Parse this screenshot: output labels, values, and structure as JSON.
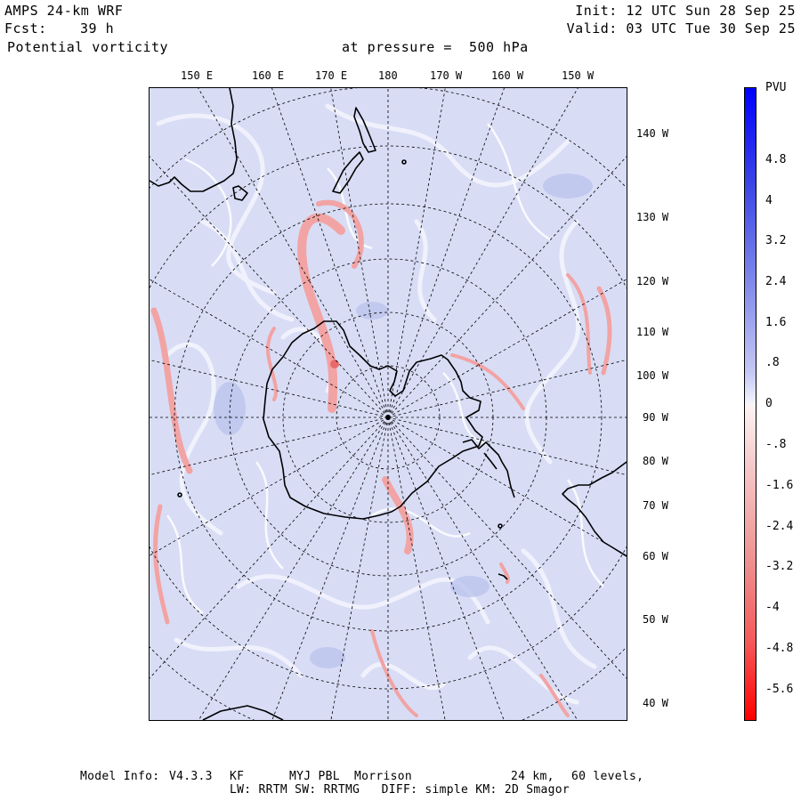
{
  "header": {
    "model": "AMPS 24-km WRF",
    "fcst_label": "Fcst:",
    "fcst_value": "39 h",
    "field": "Potential vorticity",
    "pressure_text": "at pressure =  500 hPa",
    "init": "Init: 12 UTC Sun 28 Sep 25",
    "valid": "Valid: 03 UTC Tue 30 Sep 25"
  },
  "top_longitude_labels": [
    "150 E",
    "160 E",
    "170 E",
    "180",
    "170 W",
    "160 W",
    "150 W"
  ],
  "right_longitude_labels": [
    "140 W",
    "130 W",
    "120 W",
    "110 W",
    "100 W",
    "90 W",
    "80 W",
    "70 W",
    "60 W",
    "50 W",
    "40 W"
  ],
  "colorbar": {
    "unit": "PVU",
    "labels": [
      "4.8",
      "4",
      "3.2",
      "2.4",
      "1.6",
      ".8",
      "0",
      "-.8",
      "-1.6",
      "-2.4",
      "-3.2",
      "-4",
      "-4.8",
      "-5.6"
    ],
    "colors": {
      "max_positive": "#0000ff",
      "near_zero": "#ffffff",
      "max_negative": "#ff0000",
      "map_background": "#d7dcf5",
      "negative_streak": "#f5a0a0"
    }
  },
  "footer": {
    "line1_label": "Model Info:",
    "line1_version": "V4.3.3",
    "line1_cu": "KF",
    "line1_pbl": "MYJ PBL",
    "line1_mp": "Morrison",
    "line1_res": "24 km,",
    "line1_levels": "60 levels,",
    "line2": "LW: RRTM SW: RRTMG   DIFF: simple KM: 2D Smagor"
  }
}
